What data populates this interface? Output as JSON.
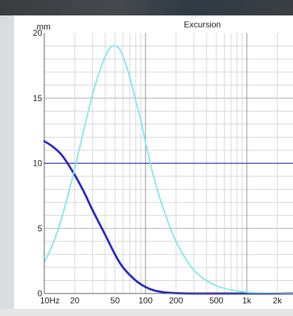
{
  "chart_data": {
    "type": "line",
    "title": "Excursion",
    "ylabel": "mm",
    "xscale": "log",
    "xlim": [
      10,
      3000
    ],
    "ylim": [
      0,
      20
    ],
    "x_tick_labels": [
      {
        "value": 10,
        "label": "10Hz"
      },
      {
        "value": 20,
        "label": "20"
      },
      {
        "value": 50,
        "label": "50"
      },
      {
        "value": 100,
        "label": "100"
      },
      {
        "value": 200,
        "label": "200"
      },
      {
        "value": 500,
        "label": "500"
      },
      {
        "value": 1000,
        "label": "1k"
      },
      {
        "value": 2000,
        "label": "2k"
      }
    ],
    "y_ticks": [
      0,
      5,
      10,
      15,
      20
    ],
    "grid": true,
    "reference_line": {
      "y": 10,
      "color": "#1f2fb0"
    },
    "series": [
      {
        "color": "#2626c8",
        "x": [
          10,
          12,
          15,
          20,
          25,
          30,
          40,
          50,
          60,
          80,
          100,
          120,
          150,
          200,
          300,
          500,
          1000,
          2000,
          3000
        ],
        "y": [
          11.7,
          11.3,
          10.6,
          9.1,
          7.7,
          6.4,
          4.5,
          3.0,
          2.0,
          1.0,
          0.5,
          0.25,
          0.1,
          0.03,
          0.0,
          0.0,
          0.0,
          0.0,
          0.0
        ]
      },
      {
        "color": "#7fe8ee",
        "x": [
          10,
          12,
          15,
          20,
          25,
          30,
          35,
          40,
          45,
          50,
          55,
          60,
          70,
          80,
          90,
          100,
          120,
          150,
          200,
          300,
          500,
          1000,
          2000,
          3000
        ],
        "y": [
          2.4,
          3.7,
          5.9,
          9.6,
          12.8,
          15.3,
          17.0,
          18.2,
          18.9,
          19.0,
          18.8,
          18.2,
          16.6,
          14.8,
          13.3,
          11.6,
          9.0,
          6.5,
          4.0,
          1.8,
          0.6,
          0.1,
          0.02,
          0.0
        ]
      }
    ]
  }
}
